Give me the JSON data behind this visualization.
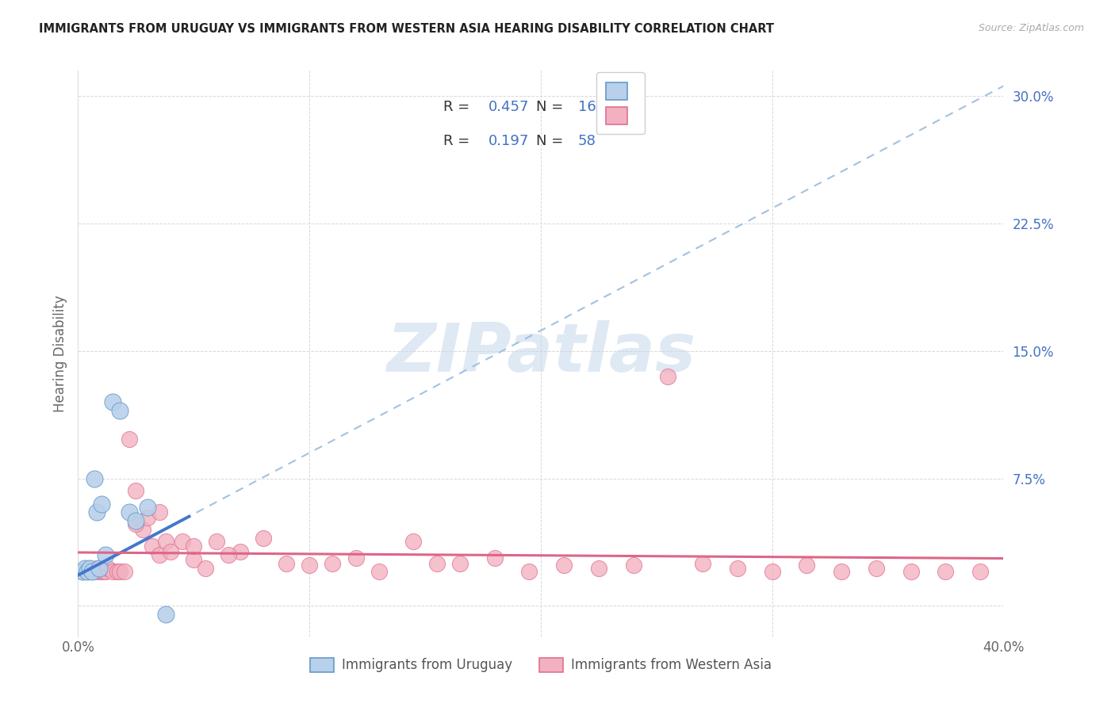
{
  "title": "IMMIGRANTS FROM URUGUAY VS IMMIGRANTS FROM WESTERN ASIA HEARING DISABILITY CORRELATION CHART",
  "source": "Source: ZipAtlas.com",
  "ylabel": "Hearing Disability",
  "ytick_vals": [
    0.0,
    0.075,
    0.15,
    0.225,
    0.3
  ],
  "ytick_labels": [
    "",
    "7.5%",
    "15.0%",
    "22.5%",
    "30.0%"
  ],
  "xmin": 0.0,
  "xmax": 0.4,
  "ymin": -0.018,
  "ymax": 0.315,
  "legend_r1": "0.457",
  "legend_n1": "16",
  "legend_r2": "0.197",
  "legend_n2": "58",
  "color_uruguay_fill": "#b8d0ea",
  "color_uruguay_edge": "#6699cc",
  "color_wa_fill": "#f2b0c0",
  "color_wa_edge": "#e07090",
  "color_line_uruguay_solid": "#4477cc",
  "color_line_uruguay_dash": "#99bbdd",
  "color_line_wa_solid": "#dd6688",
  "color_ytick": "#4472c4",
  "color_grid": "#cccccc",
  "watermark_color": "#c5d8ec",
  "legend_label1": "Immigrants from Uruguay",
  "legend_label2": "Immigrants from Western Asia",
  "uruguay_x": [
    0.002,
    0.003,
    0.004,
    0.005,
    0.006,
    0.007,
    0.008,
    0.009,
    0.01,
    0.012,
    0.015,
    0.018,
    0.022,
    0.025,
    0.03,
    0.038
  ],
  "uruguay_y": [
    0.02,
    0.022,
    0.02,
    0.022,
    0.02,
    0.075,
    0.055,
    0.022,
    0.06,
    0.03,
    0.12,
    0.115,
    0.055,
    0.05,
    0.058,
    -0.005
  ],
  "western_asia_x": [
    0.002,
    0.003,
    0.004,
    0.005,
    0.005,
    0.006,
    0.007,
    0.008,
    0.009,
    0.01,
    0.011,
    0.012,
    0.013,
    0.015,
    0.017,
    0.018,
    0.02,
    0.022,
    0.025,
    0.028,
    0.03,
    0.032,
    0.035,
    0.038,
    0.04,
    0.045,
    0.05,
    0.055,
    0.06,
    0.07,
    0.08,
    0.09,
    0.1,
    0.11,
    0.12,
    0.13,
    0.145,
    0.155,
    0.165,
    0.18,
    0.195,
    0.21,
    0.225,
    0.24,
    0.255,
    0.27,
    0.285,
    0.3,
    0.315,
    0.33,
    0.345,
    0.36,
    0.375,
    0.39,
    0.025,
    0.035,
    0.05,
    0.065
  ],
  "western_asia_y": [
    0.02,
    0.02,
    0.02,
    0.02,
    0.022,
    0.02,
    0.02,
    0.022,
    0.02,
    0.02,
    0.02,
    0.02,
    0.022,
    0.02,
    0.02,
    0.02,
    0.02,
    0.098,
    0.068,
    0.045,
    0.052,
    0.035,
    0.03,
    0.038,
    0.032,
    0.038,
    0.027,
    0.022,
    0.038,
    0.032,
    0.04,
    0.025,
    0.024,
    0.025,
    0.028,
    0.02,
    0.038,
    0.025,
    0.025,
    0.028,
    0.02,
    0.024,
    0.022,
    0.024,
    0.135,
    0.025,
    0.022,
    0.02,
    0.024,
    0.02,
    0.022,
    0.02,
    0.02,
    0.02,
    0.048,
    0.055,
    0.035,
    0.03
  ]
}
